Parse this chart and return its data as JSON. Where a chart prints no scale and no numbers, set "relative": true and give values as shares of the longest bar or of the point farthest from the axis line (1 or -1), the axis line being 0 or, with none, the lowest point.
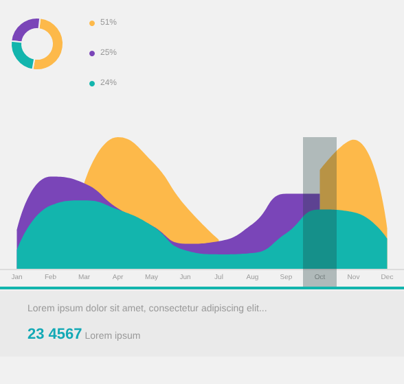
{
  "chart_data": [
    {
      "type": "donut",
      "categories": [
        "51%",
        "25%",
        "24%"
      ],
      "values": [
        51,
        25,
        24
      ],
      "colors": [
        "#fdb94a",
        "#7a45b8",
        "#13b5ad"
      ],
      "legend": "right"
    },
    {
      "type": "area",
      "relative": true,
      "categories": [
        "Jan",
        "Feb",
        "Mar",
        "Apr",
        "May",
        "Jun",
        "Jul",
        "Aug",
        "Sep",
        "Oct",
        "Nov",
        "Dec"
      ],
      "series": [
        {
          "color": "#fdb94a",
          "values": [
            null,
            null,
            0.65,
            1,
            0.82,
            0.48,
            0.22,
            null,
            null,
            0.75,
            0.98,
            0.31
          ]
        },
        {
          "color": "#7a45b8",
          "values": [
            0.29,
            0.7,
            0.65,
            0.46,
            0.33,
            0.19,
            0.21,
            0.34,
            0.57,
            0.57,
            null,
            null
          ]
        },
        {
          "color": "#13b5ad",
          "values": [
            0.14,
            0.48,
            0.52,
            0.45,
            0.33,
            0.14,
            0.11,
            0.12,
            0.27,
            0.45,
            0.43,
            0.23
          ]
        }
      ],
      "bands": [
        {
          "axis": "x",
          "from": "Oct",
          "to": "Oct",
          "color": "#1a3a3a"
        }
      ],
      "annotations": [
        "Lorem ipsum dolor sit amet, consectetur adipiscing elit...",
        "23 4567",
        "Lorem ipsum"
      ]
    }
  ]
}
